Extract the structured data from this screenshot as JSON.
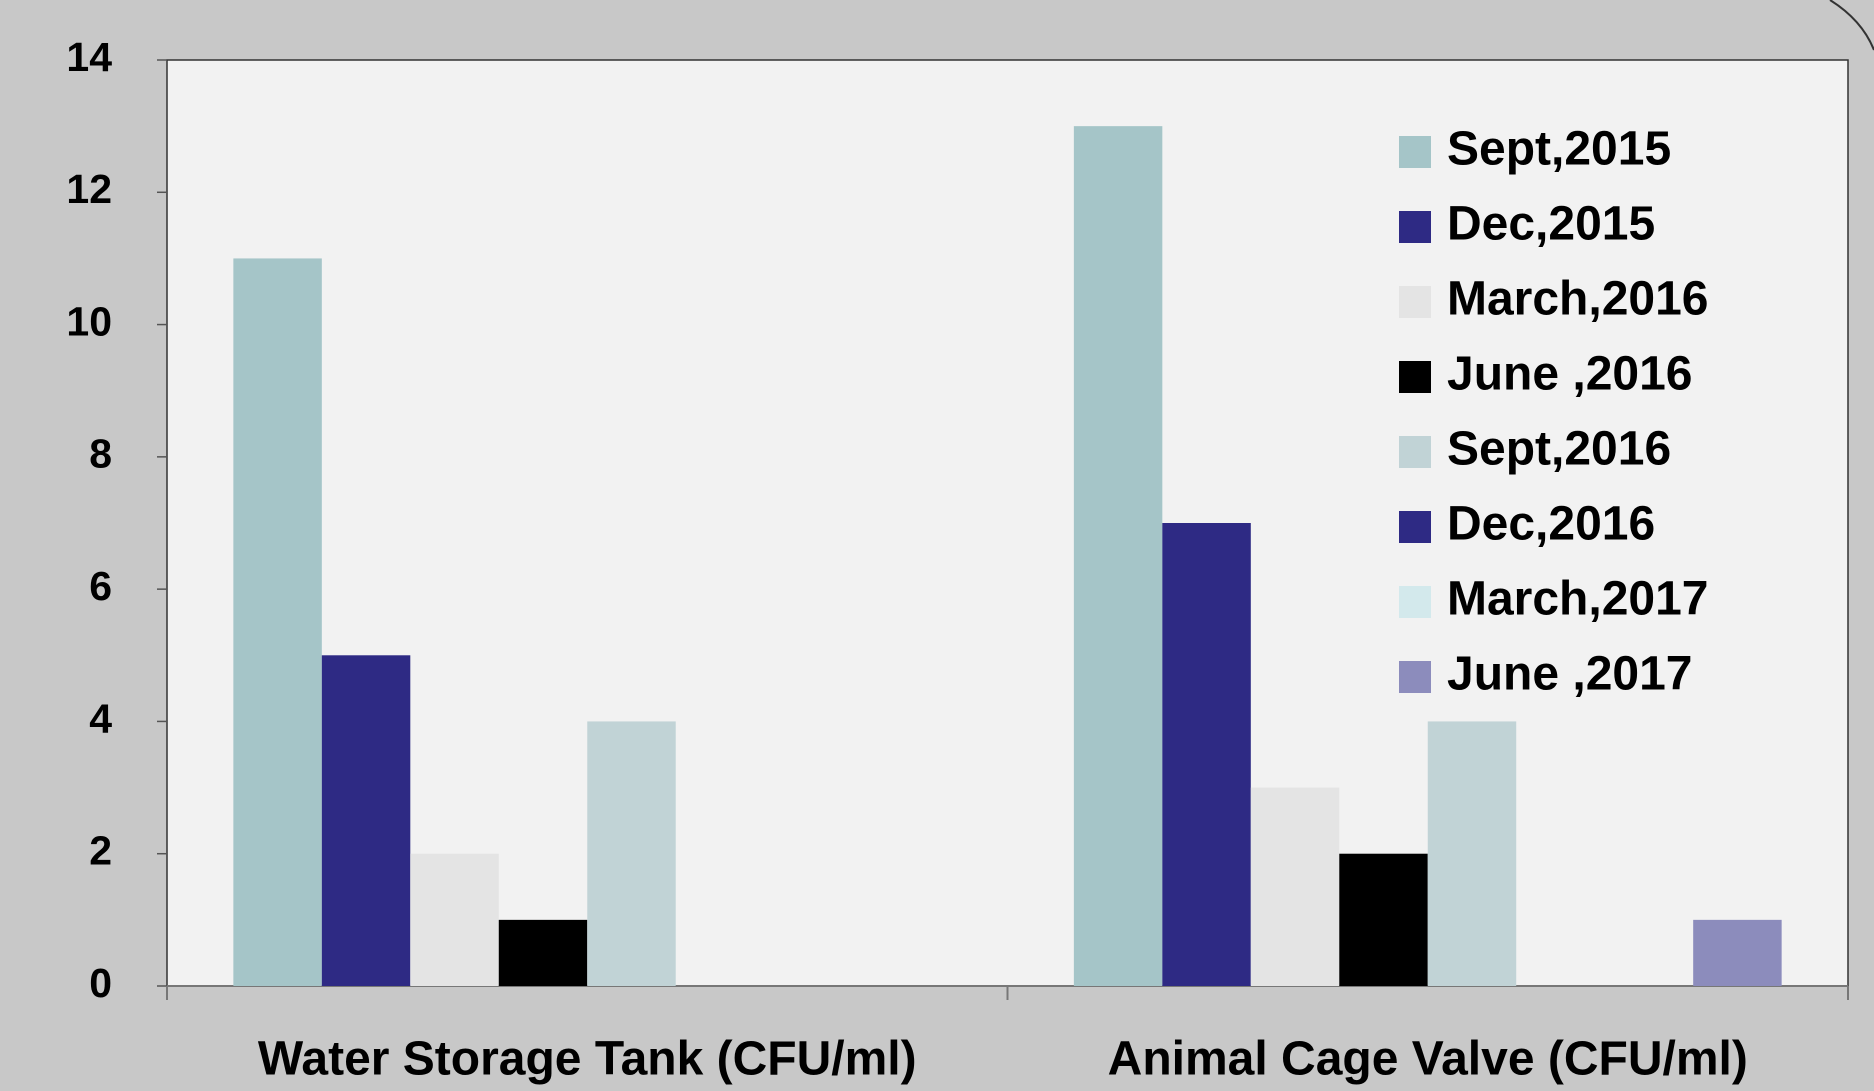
{
  "chart_data": {
    "type": "bar",
    "categories": [
      "Water Storage Tank  (CFU/ml)",
      "Animal Cage Valve (CFU/ml)"
    ],
    "series": [
      {
        "name": "Sept,2015",
        "color": "#a5c5c8",
        "values": [
          11,
          13
        ]
      },
      {
        "name": "Dec,2015",
        "color": "#2e2a84",
        "values": [
          5,
          7
        ]
      },
      {
        "name": "March,2016",
        "color": "#e4e4e4",
        "values": [
          2,
          3
        ]
      },
      {
        "name": "June ,2016",
        "color": "#000000",
        "values": [
          1,
          2
        ]
      },
      {
        "name": "Sept,2016",
        "color": "#c1d3d6",
        "values": [
          4,
          4
        ]
      },
      {
        "name": "Dec,2016",
        "color": "#2e2a84",
        "values": [
          0,
          0
        ]
      },
      {
        "name": "March,2017",
        "color": "#d3e9ec",
        "values": [
          0,
          0
        ]
      },
      {
        "name": "June ,2017",
        "color": "#8c8cbc",
        "values": [
          0,
          1
        ]
      }
    ],
    "ylim": [
      0,
      14
    ],
    "yticks": [
      0,
      2,
      4,
      6,
      8,
      10,
      12,
      14
    ],
    "legend": "upper right",
    "grid": false
  }
}
